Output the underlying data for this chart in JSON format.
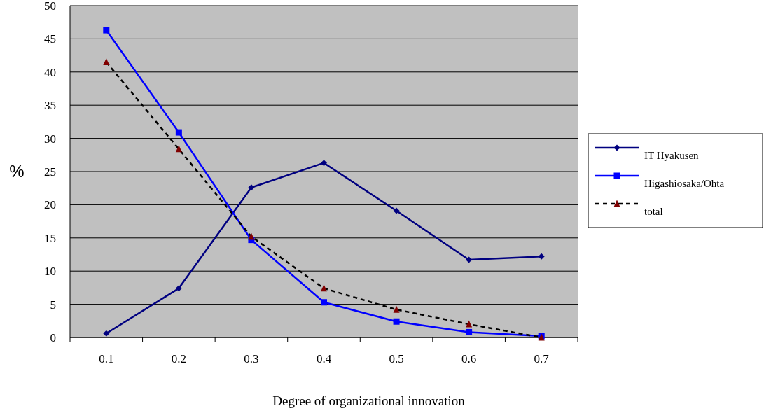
{
  "chart_data": {
    "type": "line",
    "xlabel": "Degree of organizational innovation",
    "ylabel": "%",
    "categories": [
      "0.1",
      "0.2",
      "0.3",
      "0.4",
      "0.5",
      "0.6",
      "0.7"
    ],
    "series": [
      {
        "name": "IT Hyakusen",
        "color": "#000080",
        "marker": "diamond",
        "line_style": "solid",
        "values": [
          0.6,
          7.4,
          22.6,
          26.3,
          19.1,
          11.7,
          12.2
        ]
      },
      {
        "name": "Higashiosaka/Ohta",
        "color": "#0000ff",
        "marker": "square",
        "line_style": "solid",
        "values": [
          46.3,
          30.9,
          14.7,
          5.3,
          2.4,
          0.8,
          0.2
        ]
      },
      {
        "name": "total",
        "color": "#000000",
        "colors": [
          "#800000",
          "#800000",
          "#800000",
          "#800000",
          "#800000",
          "#800000",
          "#800000"
        ],
        "marker": "triangle",
        "line_style": "dashed",
        "values": [
          41.5,
          28.4,
          15.2,
          7.4,
          4.2,
          2.0,
          0
        ]
      }
    ],
    "ylim": [
      0,
      50
    ],
    "yticks": [
      0,
      5,
      10,
      15,
      20,
      25,
      30,
      35,
      40,
      45,
      50
    ],
    "grid": "y",
    "legend": "right"
  }
}
